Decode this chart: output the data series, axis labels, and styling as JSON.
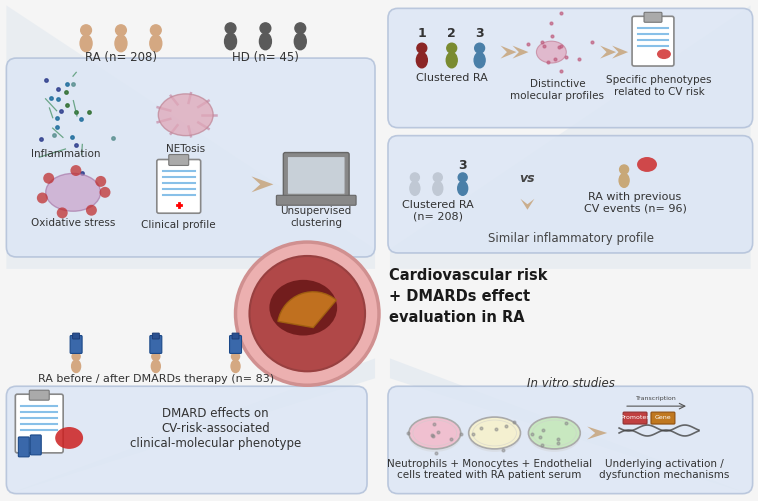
{
  "bg_color": "#f5f5f5",
  "box_color": "#dce6f5",
  "box_edge_color": "#b0bfd8",
  "title_text": "Cardiovascular risk\n+ DMARDs effect\nevaluation in RA",
  "ra_label": "RA (n= 208)",
  "hd_label": "HD (n= 45)",
  "inflammation_label": "Inflammation",
  "netosis_label": "NETosis",
  "oxidative_label": "Oxidative stress",
  "clinical_label": "Clinical profile",
  "unsupervised_label": "Unsupervised\nclustering",
  "clustered_ra_label1": "Clustered RA",
  "distinctive_label": "Distinctive\nmolecular profiles",
  "specific_label": "Specific phenotypes\nrelated to CV risk",
  "clustered_ra_label2": "Clustered RA\n(n= 208)",
  "vs_label": "vs",
  "ra_cv_label": "RA with previous\nCV events (n= 96)",
  "similar_label": "Similar inflammatory profile",
  "dmard_therapy_label": "RA before / after DMARDs therapy (n= 83)",
  "dmard_effects_label": "DMARD effects on\nCV-risk-associated\nclinical-molecular phenotype",
  "in_vitro_label": "In vitro studies",
  "neutrophils_label": "Neutrophils + Monocytes + Endothelial\ncells treated with RA patient serum",
  "underlying_label": "Underlying activation /\ndysfunction mechanisms",
  "cluster_numbers": [
    "1",
    "2",
    "3"
  ],
  "cluster_colors": [
    "#8b2525",
    "#7a8b30",
    "#4a7fa8"
  ],
  "person_color_ra": "#d4a882",
  "person_color_hd": "#5a5a5a",
  "center_circle_outer": "#ebb0b0",
  "center_circle_mid": "#a84040",
  "center_circle_inner": "#6b1818",
  "center_circle_accent": "#c87820",
  "funnel_color": "#c8d4e8"
}
